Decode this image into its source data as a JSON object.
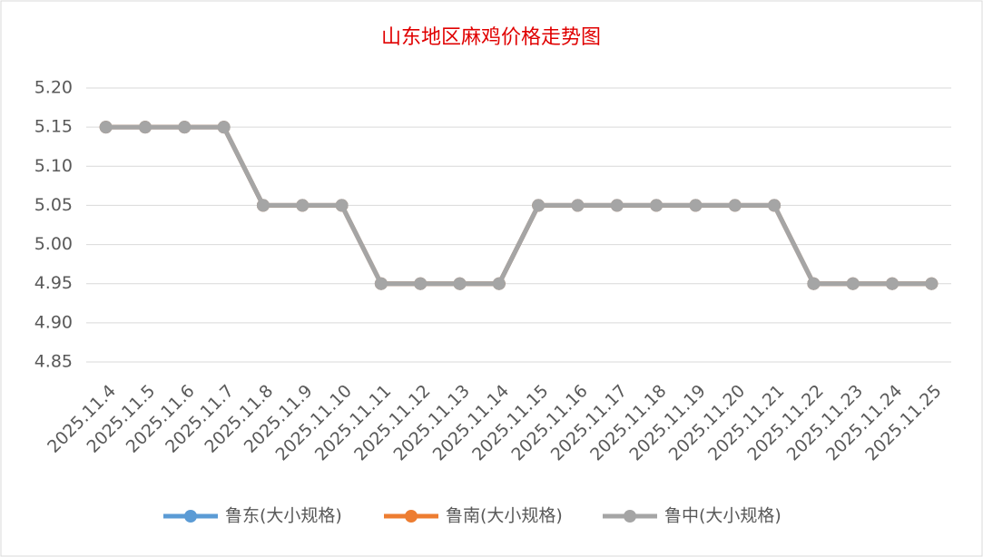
{
  "chart_data": {
    "type": "line",
    "title": "山东地区麻鸡价格走势图",
    "categories": [
      "2025.11.4",
      "2025.11.5",
      "2025.11.6",
      "2025.11.7",
      "2025.11.8",
      "2025.11.9",
      "2025.11.10",
      "2025.11.11",
      "2025.11.12",
      "2025.11.13",
      "2025.11.14",
      "2025.11.15",
      "2025.11.16",
      "2025.11.17",
      "2025.11.18",
      "2025.11.19",
      "2025.11.20",
      "2025.11.21",
      "2025.11.22",
      "2025.11.23",
      "2025.11.24",
      "2025.11.25"
    ],
    "series": [
      {
        "name": "鲁东(大小规格)",
        "color": "#5b9bd5",
        "values": [
          5.15,
          5.15,
          5.15,
          5.15,
          5.05,
          5.05,
          5.05,
          4.95,
          4.95,
          4.95,
          4.95,
          5.05,
          5.05,
          5.05,
          5.05,
          5.05,
          5.05,
          5.05,
          4.95,
          4.95,
          4.95,
          4.95
        ]
      },
      {
        "name": "鲁南(大小规格)",
        "color": "#ed7d31",
        "values": [
          5.15,
          5.15,
          5.15,
          5.15,
          5.05,
          5.05,
          5.05,
          4.95,
          4.95,
          4.95,
          4.95,
          5.05,
          5.05,
          5.05,
          5.05,
          5.05,
          5.05,
          5.05,
          4.95,
          4.95,
          4.95,
          4.95
        ]
      },
      {
        "name": "鲁中(大小规格)",
        "color": "#a5a5a5",
        "values": [
          5.15,
          5.15,
          5.15,
          5.15,
          5.05,
          5.05,
          5.05,
          4.95,
          4.95,
          4.95,
          4.95,
          5.05,
          5.05,
          5.05,
          5.05,
          5.05,
          5.05,
          5.05,
          4.95,
          4.95,
          4.95,
          4.95
        ]
      }
    ],
    "ylim": [
      4.85,
      5.2
    ],
    "yticks": [
      4.85,
      {
        "value": 4.9,
        "label": "4.90"
      },
      4.95,
      {
        "value": 5,
        "label": "5.00"
      },
      5.05,
      {
        "value": 5.1,
        "label": "5.10"
      },
      5.15,
      {
        "value": 5.2,
        "label": "5.20"
      }
    ],
    "grid": true,
    "legend": "bottom"
  }
}
